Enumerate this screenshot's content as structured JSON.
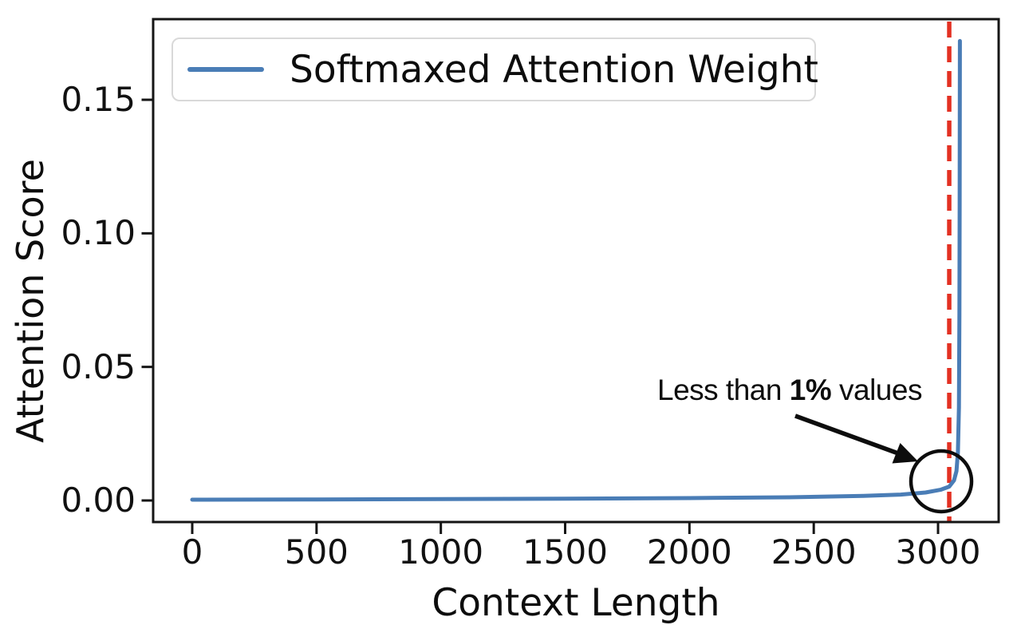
{
  "figure": {
    "background": "#ffffff"
  },
  "chart_data": {
    "type": "line",
    "title": "",
    "xlabel": "Context Length",
    "ylabel": "Attention Score",
    "x_ticks": [
      0,
      500,
      1000,
      1500,
      2000,
      2500,
      3000
    ],
    "y_ticks": [
      {
        "label": "0.00",
        "value": 0.0
      },
      {
        "label": "0.05",
        "value": 0.05
      },
      {
        "label": "0.10",
        "value": 0.1
      },
      {
        "label": "0.15",
        "value": 0.15
      }
    ],
    "xlim": [
      -160,
      3245
    ],
    "ylim": [
      -0.008,
      0.18
    ],
    "grid": false,
    "legend": {
      "position": "upper left",
      "entries": [
        {
          "label": "Softmaxed Attention Weight",
          "color": "#4a7db6"
        }
      ]
    },
    "series": [
      {
        "name": "Softmaxed Attention Weight",
        "color": "#4a7db6",
        "points": [
          [
            0,
            0.0003
          ],
          [
            500,
            0.0004
          ],
          [
            1000,
            0.0005
          ],
          [
            1500,
            0.0007
          ],
          [
            2000,
            0.0009
          ],
          [
            2400,
            0.0012
          ],
          [
            2700,
            0.0017
          ],
          [
            2850,
            0.0022
          ],
          [
            2950,
            0.003
          ],
          [
            3010,
            0.004
          ],
          [
            3045,
            0.0052
          ],
          [
            3064,
            0.0075
          ],
          [
            3074,
            0.011
          ],
          [
            3080,
            0.018
          ],
          [
            3084,
            0.035
          ],
          [
            3086,
            0.07
          ],
          [
            3087,
            0.11
          ],
          [
            3088,
            0.172
          ]
        ]
      }
    ],
    "vline": {
      "x": 3045,
      "color": "#e33022",
      "style": "dashed"
    },
    "annotation": {
      "prefix": "Less than ",
      "bold": "1%",
      "suffix": " values"
    }
  },
  "colors": {
    "line_blue": "#4a7db6",
    "vline_red": "#e33022",
    "axis_black": "#151515"
  }
}
